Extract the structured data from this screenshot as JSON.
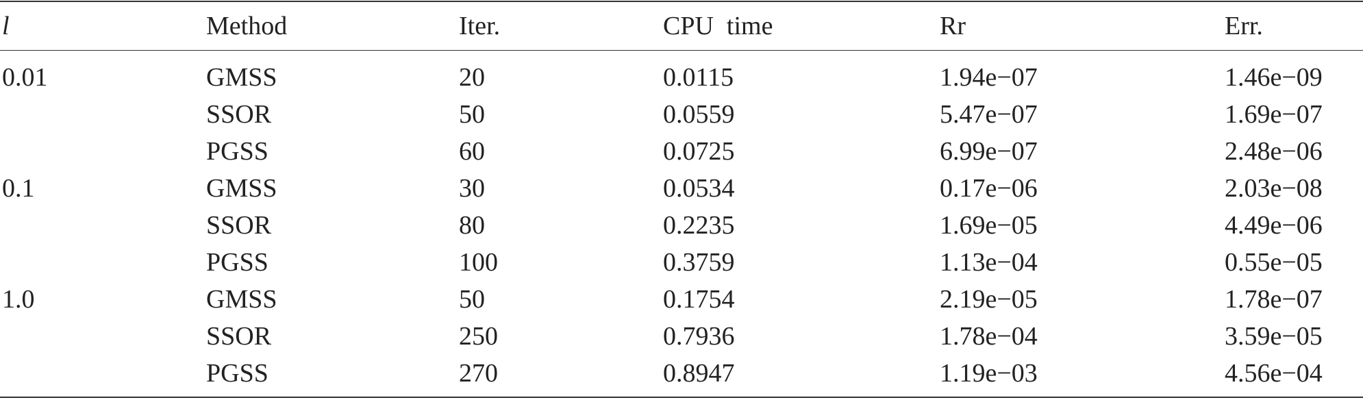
{
  "header": [
    "l",
    "Method",
    "Iter.",
    "CPU  time",
    "Rr",
    "Err."
  ],
  "groups": [
    {
      "l": "0.01",
      "rows": [
        [
          "GMSS",
          "20",
          "0.0115",
          "1.94e−07",
          "1.46e−09"
        ],
        [
          "SSOR",
          "50",
          "0.0559",
          "5.47e−07",
          "1.69e−07"
        ],
        [
          "PGSS",
          "60",
          "0.0725",
          "6.99e−07",
          "2.48e−06"
        ]
      ]
    },
    {
      "l": "0.1",
      "rows": [
        [
          "GMSS",
          "30",
          "0.0534",
          "0.17e−06",
          "2.03e−08"
        ],
        [
          "SSOR",
          "80",
          "0.2235",
          "1.69e−05",
          "4.49e−06"
        ],
        [
          "PGSS",
          "100",
          "0.3759",
          "1.13e−04",
          "0.55e−05"
        ]
      ]
    },
    {
      "l": "1.0",
      "rows": [
        [
          "GMSS",
          "50",
          "0.1754",
          "2.19e−05",
          "1.78e−07"
        ],
        [
          "SSOR",
          "250",
          "0.7936",
          "1.78e−04",
          "3.59e−05"
        ],
        [
          "PGSS",
          "270",
          "0.8947",
          "1.19e−03",
          "4.56e−04"
        ]
      ]
    }
  ]
}
